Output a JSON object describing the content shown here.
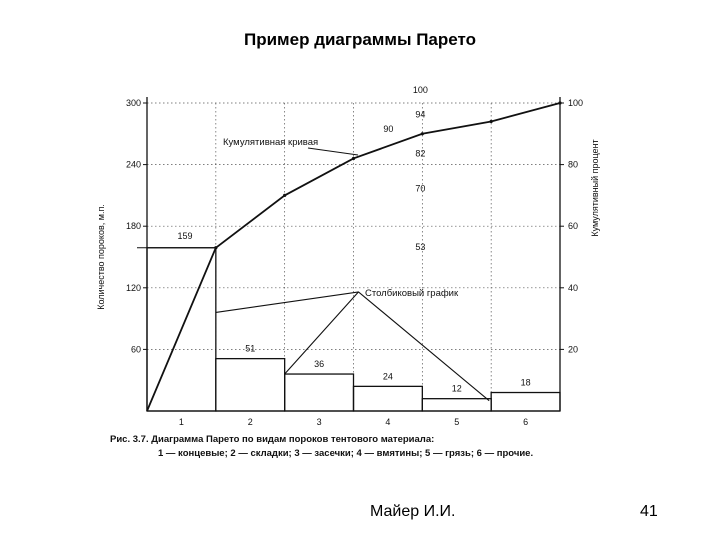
{
  "slide": {
    "title": "Пример диаграммы Парето",
    "author": "Майер И.И.",
    "page_number": "41"
  },
  "chart_data": {
    "type": "bar",
    "categories": [
      "1",
      "2",
      "3",
      "4",
      "5",
      "6"
    ],
    "values": [
      159,
      51,
      36,
      24,
      12,
      18
    ],
    "value_labels": [
      "159",
      "51",
      "36",
      "24",
      "12",
      "18"
    ],
    "cumulative_percent": [
      53,
      70,
      82,
      90,
      94,
      100
    ],
    "cumulative_labels": [
      "53",
      "70",
      "82",
      "90",
      "94",
      "100"
    ],
    "ylabel": "Количество пороков, м.п.",
    "y2label": "Кумулятивный процент",
    "ylim": [
      0,
      300
    ],
    "y2lim": [
      0,
      100
    ],
    "yticks": [
      "60",
      "120",
      "180",
      "240",
      "300"
    ],
    "y2ticks": [
      "20",
      "40",
      "60",
      "80",
      "100"
    ],
    "annotations": {
      "cumulative_curve": "Кумулятивная кривая",
      "bar_chart": "Столбиковый график"
    },
    "caption_line1": "Рис. 3.7. Диаграмма Парето по видам пороков тентового материала:",
    "caption_line2": "1 — концевые; 2 — складки; 3 — засечки; 4 — вмятины; 5 — грязь; 6 — прочие.",
    "colors": {
      "ink": "#111111",
      "grid": "#555555",
      "background": "#ffffff"
    }
  }
}
